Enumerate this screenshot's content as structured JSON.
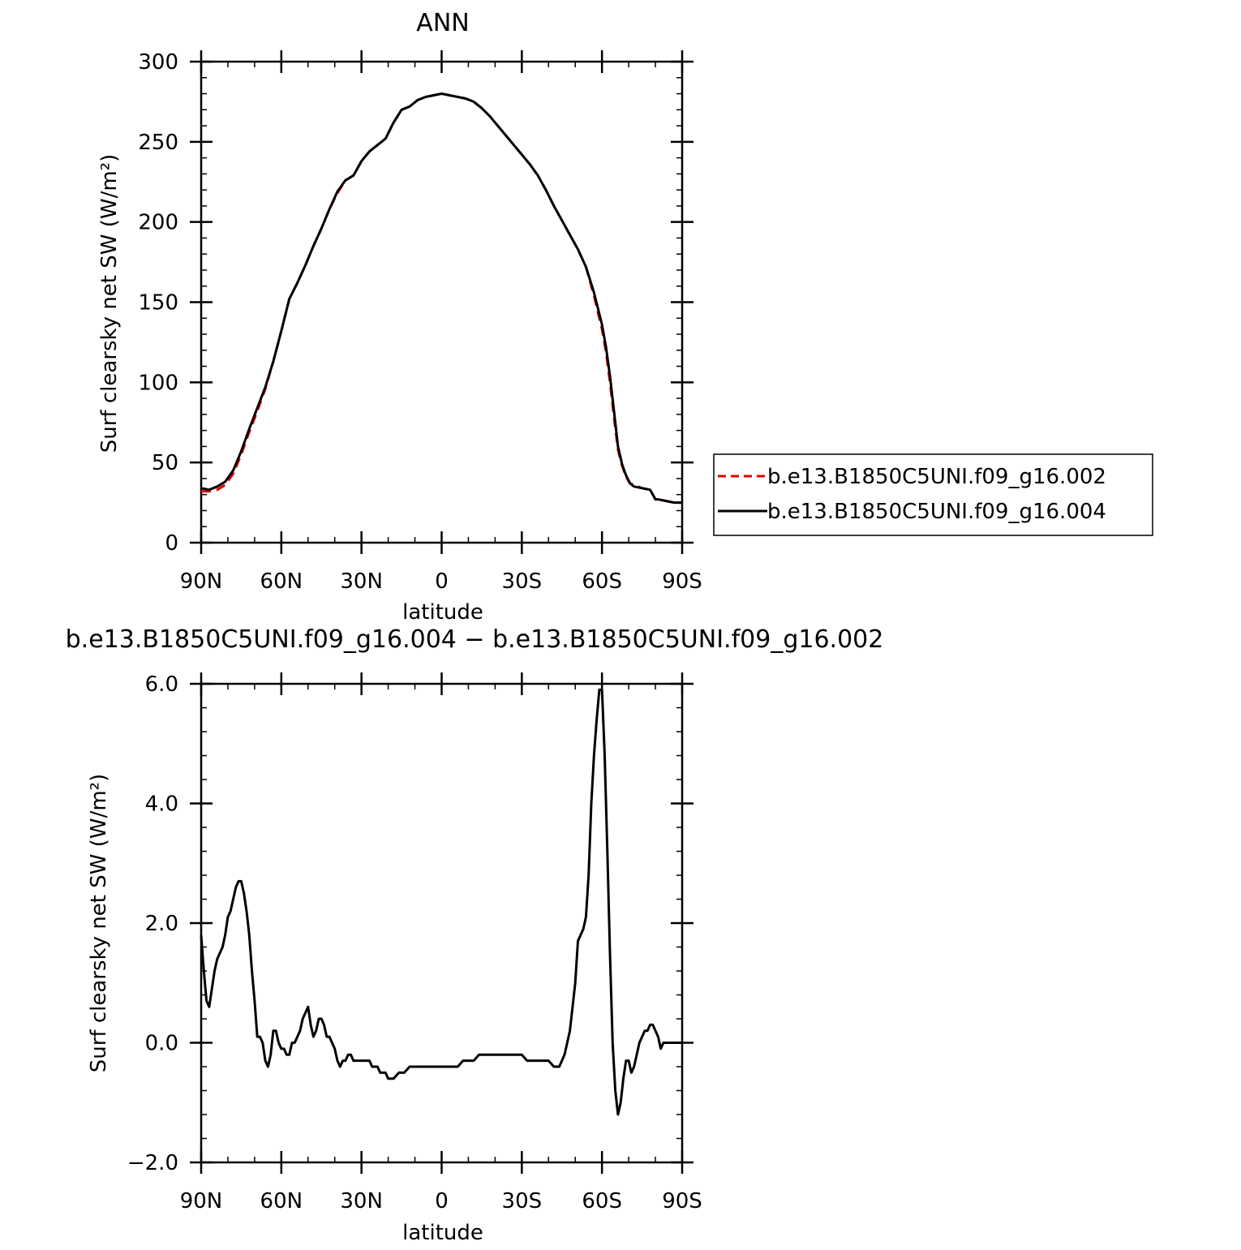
{
  "colors": {
    "series_002": "#e00000",
    "series_004": "#000000"
  },
  "legend": {
    "entries": [
      {
        "label": "b.e13.B1850C5UNI.f09_g16.002",
        "color": "#e00000",
        "dash": true
      },
      {
        "label": "b.e13.B1850C5UNI.f09_g16.004",
        "color": "#000000",
        "dash": false
      }
    ]
  },
  "chart_data": [
    {
      "type": "line",
      "title": "ANN",
      "xlabel": "latitude",
      "ylabel": "Surf clearsky net SW (W/m²)",
      "xlim": [
        90,
        -90
      ],
      "ylim": [
        0,
        300
      ],
      "x_ticks": [
        {
          "v": 90,
          "label": "90N"
        },
        {
          "v": 60,
          "label": "60N"
        },
        {
          "v": 30,
          "label": "30N"
        },
        {
          "v": 0,
          "label": "0"
        },
        {
          "v": -30,
          "label": "30S"
        },
        {
          "v": -60,
          "label": "60S"
        },
        {
          "v": -90,
          "label": "90S"
        }
      ],
      "y_ticks": [
        {
          "v": 0,
          "label": "0"
        },
        {
          "v": 50,
          "label": "50"
        },
        {
          "v": 100,
          "label": "100"
        },
        {
          "v": 150,
          "label": "150"
        },
        {
          "v": 200,
          "label": "200"
        },
        {
          "v": 250,
          "label": "250"
        },
        {
          "v": 300,
          "label": "300"
        }
      ],
      "y_minor_step": 10,
      "x_minor_step": 10,
      "series": [
        {
          "name": "b.e13.B1850C5UNI.f09_g16.002",
          "color": "#e00000",
          "dash": true,
          "x": [
            90,
            87,
            84,
            81,
            78,
            75,
            72,
            69,
            66,
            63,
            60,
            57,
            54,
            51,
            48,
            45,
            42,
            39,
            36,
            33,
            30,
            27,
            24,
            21,
            18,
            15,
            12,
            9,
            6,
            3,
            0,
            -3,
            -6,
            -9,
            -12,
            -15,
            -18,
            -21,
            -24,
            -27,
            -30,
            -33,
            -36,
            -39,
            -42,
            -45,
            -48,
            -51,
            -54,
            -57,
            -60,
            -61.5,
            -63,
            -64.5,
            -66,
            -67.5,
            -69,
            -70.5,
            -72,
            -75,
            -78,
            -80,
            -81,
            -84,
            -87,
            -90
          ],
          "y": [
            32,
            32,
            33,
            36,
            43,
            55,
            69,
            82,
            96,
            113,
            132,
            152,
            162,
            173,
            185,
            196,
            208,
            218,
            226,
            229,
            238,
            244,
            248,
            252,
            262,
            270,
            272,
            276,
            278,
            279,
            280,
            279,
            278,
            277,
            275,
            271,
            266,
            260,
            254,
            248,
            242,
            236,
            229,
            220,
            210,
            201,
            192,
            183,
            172,
            154,
            133,
            119,
            100,
            78,
            58,
            48,
            41,
            37,
            36,
            34,
            33,
            27,
            27,
            26,
            25,
            25
          ]
        },
        {
          "name": "b.e13.B1850C5UNI.f09_g16.004",
          "color": "#000000",
          "dash": false,
          "x": [
            90,
            87,
            84,
            81,
            78,
            75,
            72,
            69,
            66,
            63,
            60,
            57,
            54,
            51,
            48,
            45,
            42,
            39,
            36,
            33,
            30,
            27,
            24,
            21,
            18,
            15,
            12,
            9,
            6,
            3,
            0,
            -3,
            -6,
            -9,
            -12,
            -15,
            -18,
            -21,
            -24,
            -27,
            -30,
            -33,
            -36,
            -39,
            -42,
            -45,
            -48,
            -51,
            -54,
            -57,
            -60,
            -61.5,
            -63,
            -64.5,
            -66,
            -67.5,
            -69,
            -70.5,
            -72,
            -75,
            -78,
            -80,
            -81,
            -84,
            -87,
            -90
          ],
          "y": [
            34,
            33,
            35,
            38,
            45,
            57,
            71,
            84,
            97,
            113,
            132,
            152,
            162,
            173,
            185,
            196,
            208,
            219,
            226,
            229,
            238,
            244,
            248,
            252,
            262,
            270,
            272,
            276,
            278,
            279,
            280,
            279,
            278,
            277,
            275,
            271,
            266,
            260,
            254,
            248,
            242,
            236,
            229,
            220,
            210,
            201,
            192,
            183,
            172,
            156,
            136,
            122,
            104,
            82,
            60,
            49,
            42,
            37,
            35,
            34,
            33,
            27,
            27,
            26,
            25,
            25
          ]
        }
      ]
    },
    {
      "type": "line",
      "title": "b.e13.B1850C5UNI.f09_g16.004 − b.e13.B1850C5UNI.f09_g16.002",
      "xlabel": "latitude",
      "ylabel": "Surf clearsky net SW (W/m²)",
      "xlim": [
        90,
        -90
      ],
      "ylim": [
        -2,
        6
      ],
      "x_ticks": [
        {
          "v": 90,
          "label": "90N"
        },
        {
          "v": 60,
          "label": "60N"
        },
        {
          "v": 30,
          "label": "30N"
        },
        {
          "v": 0,
          "label": "0"
        },
        {
          "v": -30,
          "label": "30S"
        },
        {
          "v": -60,
          "label": "60S"
        },
        {
          "v": -90,
          "label": "90S"
        }
      ],
      "y_ticks": [
        {
          "v": -2,
          "label": "−2.0"
        },
        {
          "v": 0,
          "label": "0.0"
        },
        {
          "v": 2,
          "label": "2.0"
        },
        {
          "v": 4,
          "label": "4.0"
        },
        {
          "v": 6,
          "label": "6.0"
        }
      ],
      "y_minor_step": 0.4,
      "x_minor_step": 10,
      "series": [
        {
          "name": "b.e13.B1850C5UNI.f09_g16.004 − b.e13.B1850C5UNI.f09_g16.002",
          "color": "#000000",
          "dash": false,
          "x": [
            90,
            89,
            88,
            87,
            86,
            85,
            84,
            83,
            82,
            81,
            80,
            79,
            78,
            77,
            76,
            75,
            74,
            73,
            72,
            71,
            70,
            69,
            68,
            67,
            66,
            65,
            64,
            63,
            62,
            61,
            60,
            59,
            58,
            57,
            56,
            55,
            54,
            53,
            52,
            51,
            50,
            49,
            48,
            47,
            46,
            45,
            44,
            43,
            42,
            41,
            40,
            39,
            38,
            37,
            36,
            35,
            34,
            33,
            32,
            31,
            30,
            29,
            28,
            27,
            26,
            25,
            24,
            23,
            22,
            21,
            20,
            18,
            16,
            14,
            12,
            10,
            8,
            6,
            4,
            2,
            0,
            -2,
            -4,
            -6,
            -8,
            -10,
            -12,
            -14,
            -16,
            -18,
            -20,
            -22,
            -24,
            -26,
            -28,
            -30,
            -32,
            -34,
            -36,
            -38,
            -40,
            -42,
            -44,
            -46,
            -48,
            -50,
            -51,
            -52,
            -53,
            -54,
            -55,
            -56,
            -57,
            -58,
            -59,
            -60,
            -61,
            -62,
            -63,
            -64,
            -65,
            -66,
            -67,
            -68,
            -69,
            -70,
            -71,
            -72,
            -73,
            -74,
            -75,
            -76,
            -77,
            -78,
            -79,
            -80,
            -81,
            -82,
            -83,
            -84,
            -85,
            -86,
            -87,
            -88,
            -89,
            -90
          ],
          "y": [
            1.8,
            1.2,
            0.7,
            0.6,
            0.9,
            1.2,
            1.4,
            1.5,
            1.6,
            1.8,
            2.1,
            2.2,
            2.4,
            2.6,
            2.7,
            2.7,
            2.5,
            2.2,
            1.8,
            1.2,
            0.7,
            0.1,
            0.1,
            0.0,
            -0.3,
            -0.4,
            -0.2,
            0.2,
            0.2,
            0.0,
            -0.1,
            -0.1,
            -0.2,
            -0.2,
            0.0,
            0.0,
            0.1,
            0.2,
            0.4,
            0.5,
            0.6,
            0.3,
            0.1,
            0.2,
            0.4,
            0.4,
            0.3,
            0.1,
            0.1,
            0.0,
            -0.1,
            -0.3,
            -0.4,
            -0.3,
            -0.3,
            -0.2,
            -0.2,
            -0.3,
            -0.3,
            -0.3,
            -0.3,
            -0.3,
            -0.3,
            -0.3,
            -0.4,
            -0.4,
            -0.4,
            -0.5,
            -0.5,
            -0.5,
            -0.6,
            -0.6,
            -0.5,
            -0.5,
            -0.4,
            -0.4,
            -0.4,
            -0.4,
            -0.4,
            -0.4,
            -0.4,
            -0.4,
            -0.4,
            -0.4,
            -0.3,
            -0.3,
            -0.3,
            -0.2,
            -0.2,
            -0.2,
            -0.2,
            -0.2,
            -0.2,
            -0.2,
            -0.2,
            -0.2,
            -0.3,
            -0.3,
            -0.3,
            -0.3,
            -0.3,
            -0.4,
            -0.4,
            -0.2,
            0.2,
            1.0,
            1.7,
            1.8,
            1.9,
            2.1,
            2.8,
            4.0,
            4.8,
            5.4,
            5.9,
            5.9,
            4.8,
            3.2,
            1.5,
            0.0,
            -0.8,
            -1.2,
            -1.0,
            -0.6,
            -0.3,
            -0.3,
            -0.5,
            -0.4,
            -0.2,
            0.0,
            0.1,
            0.2,
            0.2,
            0.3,
            0.3,
            0.2,
            0.1,
            -0.1,
            0.0,
            0.0,
            0.0,
            0.0,
            0.0,
            0.0,
            0.0,
            0.0
          ]
        }
      ]
    }
  ]
}
